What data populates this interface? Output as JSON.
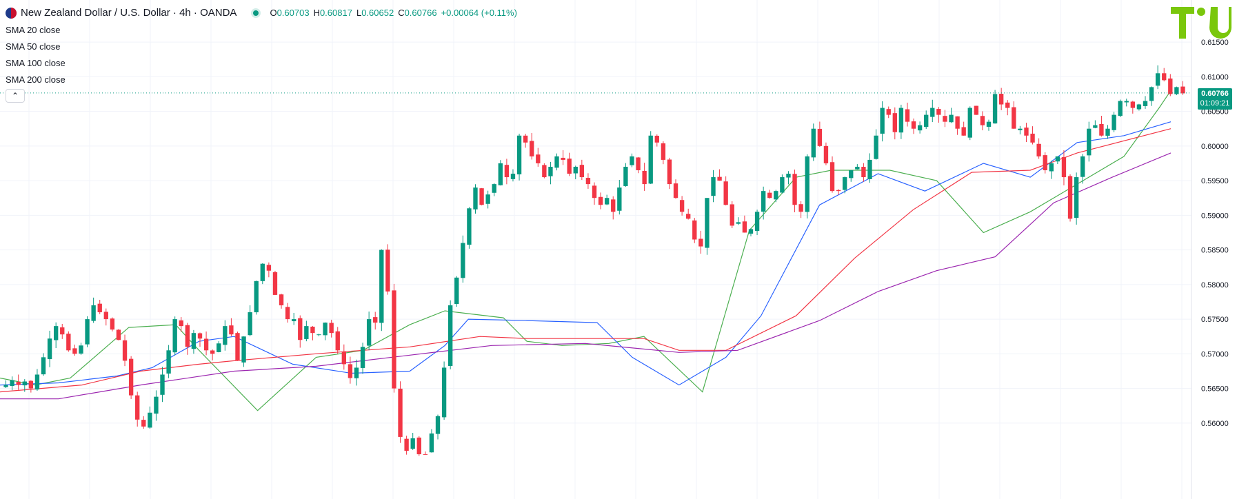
{
  "header": {
    "symbol": "New Zealand Dollar / U.S. Dollar · 4h · OANDA",
    "open_label": "O",
    "open": "0.60703",
    "high_label": "H",
    "high": "0.60817",
    "low_label": "L",
    "low": "0.60652",
    "close_label": "C",
    "close": "0.60766",
    "change": "+0.00064 (+0.11%)"
  },
  "indicators": [
    {
      "label": "SMA 20 close",
      "color": "#4caf50"
    },
    {
      "label": "SMA 50 close",
      "color": "#2962ff"
    },
    {
      "label": "SMA 100 close",
      "color": "#f23645"
    },
    {
      "label": "SMA 200 close",
      "color": "#9c27b0"
    }
  ],
  "collapse_icon": "chevron-up-icon",
  "current_price": {
    "value": "0.60766",
    "countdown": "01:09:21"
  },
  "colors": {
    "up": "#089981",
    "down": "#f23645",
    "grid": "#f0f3fa",
    "axis_text": "#131722"
  },
  "chart_data": {
    "type": "candlestick",
    "title": "New Zealand Dollar / U.S. Dollar",
    "interval": "4h",
    "y_ticks": [
      "0.56000",
      "0.56500",
      "0.57000",
      "0.57500",
      "0.58000",
      "0.58500",
      "0.59000",
      "0.59500",
      "0.60000",
      "0.60500",
      "0.61000",
      "0.61500"
    ],
    "ylim": [
      0.5565,
      0.6165
    ],
    "grid": true,
    "close_path": [
      0.5655,
      0.5662,
      0.5655,
      0.566,
      0.565,
      0.567,
      0.5695,
      0.5722,
      0.574,
      0.5728,
      0.5705,
      0.57,
      0.5712,
      0.575,
      0.577,
      0.576,
      0.575,
      0.5735,
      0.572,
      0.569,
      0.564,
      0.5605,
      0.5595,
      0.5615,
      0.5638,
      0.567,
      0.5705,
      0.575,
      0.574,
      0.571,
      0.573,
      0.5722,
      0.5705,
      0.57,
      0.5715,
      0.574,
      0.5728,
      0.569,
      0.5725,
      0.576,
      0.5805,
      0.583,
      0.582,
      0.5785,
      0.577,
      0.575,
      0.575,
      0.572,
      0.574,
      0.573,
      0.5728,
      0.5745,
      0.573,
      0.5705,
      0.5685,
      0.5665,
      0.568,
      0.571,
      0.575,
      0.5745,
      0.585,
      0.579,
      0.565,
      0.558,
      0.556,
      0.5578,
      0.5555,
      0.5555,
      0.5585,
      0.561,
      0.568,
      0.577,
      0.581,
      0.586,
      0.591,
      0.594,
      0.5915,
      0.593,
      0.5945,
      0.5975,
      0.5955,
      0.596,
      0.6015,
      0.6005,
      0.5985,
      0.5975,
      0.5955,
      0.597,
      0.5985,
      0.598,
      0.596,
      0.597,
      0.5955,
      0.5945,
      0.5925,
      0.5915,
      0.5925,
      0.5905,
      0.594,
      0.597,
      0.5985,
      0.5965,
      0.5945,
      0.6015,
      0.6005,
      0.598,
      0.5945,
      0.5925,
      0.5905,
      0.5895,
      0.5865,
      0.5855,
      0.5925,
      0.5955,
      0.595,
      0.5915,
      0.5885,
      0.589,
      0.5875,
      0.588,
      0.5905,
      0.5935,
      0.5925,
      0.5935,
      0.5955,
      0.596,
      0.5915,
      0.5905,
      0.5985,
      0.6025,
      0.6,
      0.5975,
      0.5935,
      0.5935,
      0.5955,
      0.5965,
      0.597,
      0.5955,
      0.598,
      0.6015,
      0.6055,
      0.6045,
      0.602,
      0.6055,
      0.6035,
      0.6025,
      0.603,
      0.6045,
      0.6055,
      0.6045,
      0.6035,
      0.6045,
      0.6025,
      0.6015,
      0.6055,
      0.6045,
      0.603,
      0.6035,
      0.6075,
      0.606,
      0.6055,
      0.6025,
      0.6025,
      0.6015,
      0.6005,
      0.5985,
      0.5965,
      0.5975,
      0.5985,
      0.5955,
      0.5895,
      0.5955,
      0.5985,
      0.6025,
      0.603,
      0.6015,
      0.6025,
      0.6045,
      0.6065,
      0.6065,
      0.6055,
      0.606,
      0.6065,
      0.6085,
      0.6105,
      0.6095,
      0.6075,
      0.6085,
      0.6076
    ],
    "sma_20": {
      "x": [
        0,
        0.03,
        0.06,
        0.11,
        0.15,
        0.17,
        0.22,
        0.27,
        0.31,
        0.35,
        0.38,
        0.43,
        0.45,
        0.48,
        0.52,
        0.55,
        0.6,
        0.64,
        0.68,
        0.71,
        0.76,
        0.8,
        0.84,
        0.88,
        0.92,
        0.96,
        0.99,
        1
      ],
      "y": [
        0.5665,
        0.5655,
        0.5665,
        0.5738,
        0.5742,
        0.5705,
        0.5618,
        0.5695,
        0.5705,
        0.5742,
        0.5762,
        0.5752,
        0.5718,
        0.5712,
        0.5715,
        0.5725,
        0.5645,
        0.5878,
        0.5955,
        0.5965,
        0.5965,
        0.595,
        0.5875,
        0.5905,
        0.5945,
        0.5985,
        0.6055,
        0.608
      ]
    },
    "sma_50": {
      "x": [
        0,
        0.05,
        0.1,
        0.13,
        0.17,
        0.2,
        0.25,
        0.3,
        0.35,
        0.38,
        0.4,
        0.45,
        0.51,
        0.54,
        0.58,
        0.62,
        0.65,
        0.7,
        0.75,
        0.79,
        0.84,
        0.88,
        0.92,
        0.96,
        1
      ],
      "y": [
        0.5655,
        0.5658,
        0.5668,
        0.568,
        0.5718,
        0.5725,
        0.5685,
        0.5672,
        0.5675,
        0.5712,
        0.575,
        0.5748,
        0.5745,
        0.5695,
        0.5655,
        0.5695,
        0.5755,
        0.5915,
        0.596,
        0.5935,
        0.5975,
        0.5955,
        0.6005,
        0.6015,
        0.6035
      ]
    },
    "sma_100": {
      "x": [
        0,
        0.07,
        0.12,
        0.17,
        0.2,
        0.27,
        0.35,
        0.41,
        0.45,
        0.5,
        0.55,
        0.58,
        0.62,
        0.68,
        0.73,
        0.78,
        0.83,
        0.88,
        0.92,
        1
      ],
      "y": [
        0.5645,
        0.5655,
        0.5675,
        0.5685,
        0.569,
        0.57,
        0.571,
        0.5725,
        0.5722,
        0.5722,
        0.5722,
        0.5705,
        0.5705,
        0.5755,
        0.5838,
        0.5908,
        0.5962,
        0.5965,
        0.599,
        0.6025
      ]
    },
    "sma_200": {
      "x": [
        0,
        0.05,
        0.12,
        0.2,
        0.27,
        0.35,
        0.42,
        0.5,
        0.58,
        0.63,
        0.7,
        0.75,
        0.8,
        0.85,
        0.9,
        0.95,
        1
      ],
      "y": [
        0.5635,
        0.5635,
        0.5655,
        0.5675,
        0.5682,
        0.5698,
        0.5712,
        0.5715,
        0.5702,
        0.5705,
        0.5748,
        0.579,
        0.582,
        0.584,
        0.5918,
        0.5955,
        0.599
      ]
    }
  }
}
